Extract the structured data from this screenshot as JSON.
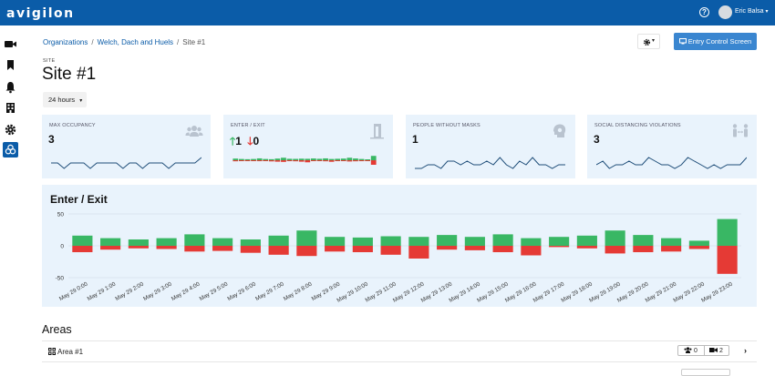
{
  "header": {
    "logo": "avigilon",
    "help_glyph": "?",
    "user_name": "Eric Balsa",
    "caret": "▾",
    "icons": [
      "help-icon",
      "avatar",
      "chevron-down-icon"
    ]
  },
  "sidenav": {
    "items": [
      {
        "name": "camera-icon"
      },
      {
        "name": "bookmark-icon"
      },
      {
        "name": "bell-icon"
      },
      {
        "name": "building-icon"
      },
      {
        "name": "gear-icon"
      },
      {
        "name": "biohazard-icon",
        "active": true
      }
    ]
  },
  "breadcrumb": {
    "items": [
      "Organizations",
      "Welch, Dach and Huels",
      "Site #1"
    ],
    "separator": "/"
  },
  "toolbar": {
    "gear_caret": "▾",
    "entry_button": "Entry Control Screen"
  },
  "site": {
    "eyebrow": "SITE",
    "title": "Site #1",
    "range": "24 hours",
    "range_caret": "▾"
  },
  "cards": {
    "max_occupancy": {
      "label": "MAX OCCUPANCY",
      "value": "3",
      "icon": "users-icon"
    },
    "enter_exit": {
      "label": "ENTER / EXIT",
      "enter_value": "1",
      "exit_value": "0",
      "icon": "door-icon"
    },
    "no_masks": {
      "label": "PEOPLE WITHOUT MASKS",
      "value": "1",
      "icon": "head-icon"
    },
    "distancing": {
      "label": "SOCIAL DISTANCING VIOLATIONS",
      "value": "3",
      "icon": "distance-icon"
    }
  },
  "colors": {
    "brand": "#0b5ca8",
    "button": "#3a86d0",
    "card_bg": "#e9f3fc",
    "enter": "#39b764",
    "exit": "#e53a35",
    "spark": "#1f4e79"
  },
  "chart_data": {
    "type": "bar",
    "title": "Enter / Exit",
    "categories": [
      "May 29 0:00",
      "May 29 1:00",
      "May 29 2:00",
      "May 29 3:00",
      "May 29 4:00",
      "May 29 5:00",
      "May 29 6:00",
      "May 29 7:00",
      "May 29 8:00",
      "May 29 9:00",
      "May 29 10:00",
      "May 29 11:00",
      "May 29 12:00",
      "May 29 13:00",
      "May 29 14:00",
      "May 29 15:00",
      "May 29 16:00",
      "May 29 17:00",
      "May 29 18:00",
      "May 29 19:00",
      "May 29 20:00",
      "May 29 21:00",
      "May 29 22:00",
      "May 29 23:00"
    ],
    "series": [
      {
        "name": "Enter",
        "values": [
          16,
          12,
          10,
          12,
          18,
          12,
          10,
          16,
          24,
          14,
          13,
          15,
          14,
          17,
          14,
          18,
          12,
          14,
          16,
          24,
          17,
          12,
          8,
          42
        ]
      },
      {
        "name": "Exit",
        "values": [
          -10,
          -6,
          -4,
          -5,
          -9,
          -8,
          -11,
          -14,
          -16,
          -9,
          -10,
          -14,
          -20,
          -6,
          -7,
          -10,
          -15,
          -2,
          -4,
          -12,
          -10,
          -9,
          -5,
          -44
        ]
      }
    ],
    "yticks": [
      "50",
      "0",
      "-50"
    ],
    "ylim": [
      -50,
      50
    ],
    "grid": true
  },
  "sparklines": {
    "max_occupancy": [
      2,
      2,
      1,
      2,
      2,
      2,
      1,
      2,
      2,
      2,
      2,
      1,
      2,
      2,
      1,
      2,
      2,
      2,
      1,
      2,
      2,
      2,
      2,
      3
    ],
    "no_masks": [
      0,
      0,
      1,
      1,
      0,
      2,
      2,
      1,
      2,
      1,
      1,
      2,
      1,
      3,
      1,
      0,
      2,
      1,
      3,
      1,
      1,
      0,
      1,
      1
    ],
    "distancing": [
      1,
      2,
      0,
      1,
      1,
      2,
      1,
      1,
      3,
      2,
      1,
      1,
      0,
      1,
      3,
      2,
      1,
      0,
      1,
      0,
      1,
      1,
      1,
      3
    ]
  },
  "areas": {
    "title": "Areas",
    "rows": [
      {
        "name": "Area #1",
        "occupancy": "0",
        "cameras": "2",
        "chevron": "›"
      }
    ]
  }
}
